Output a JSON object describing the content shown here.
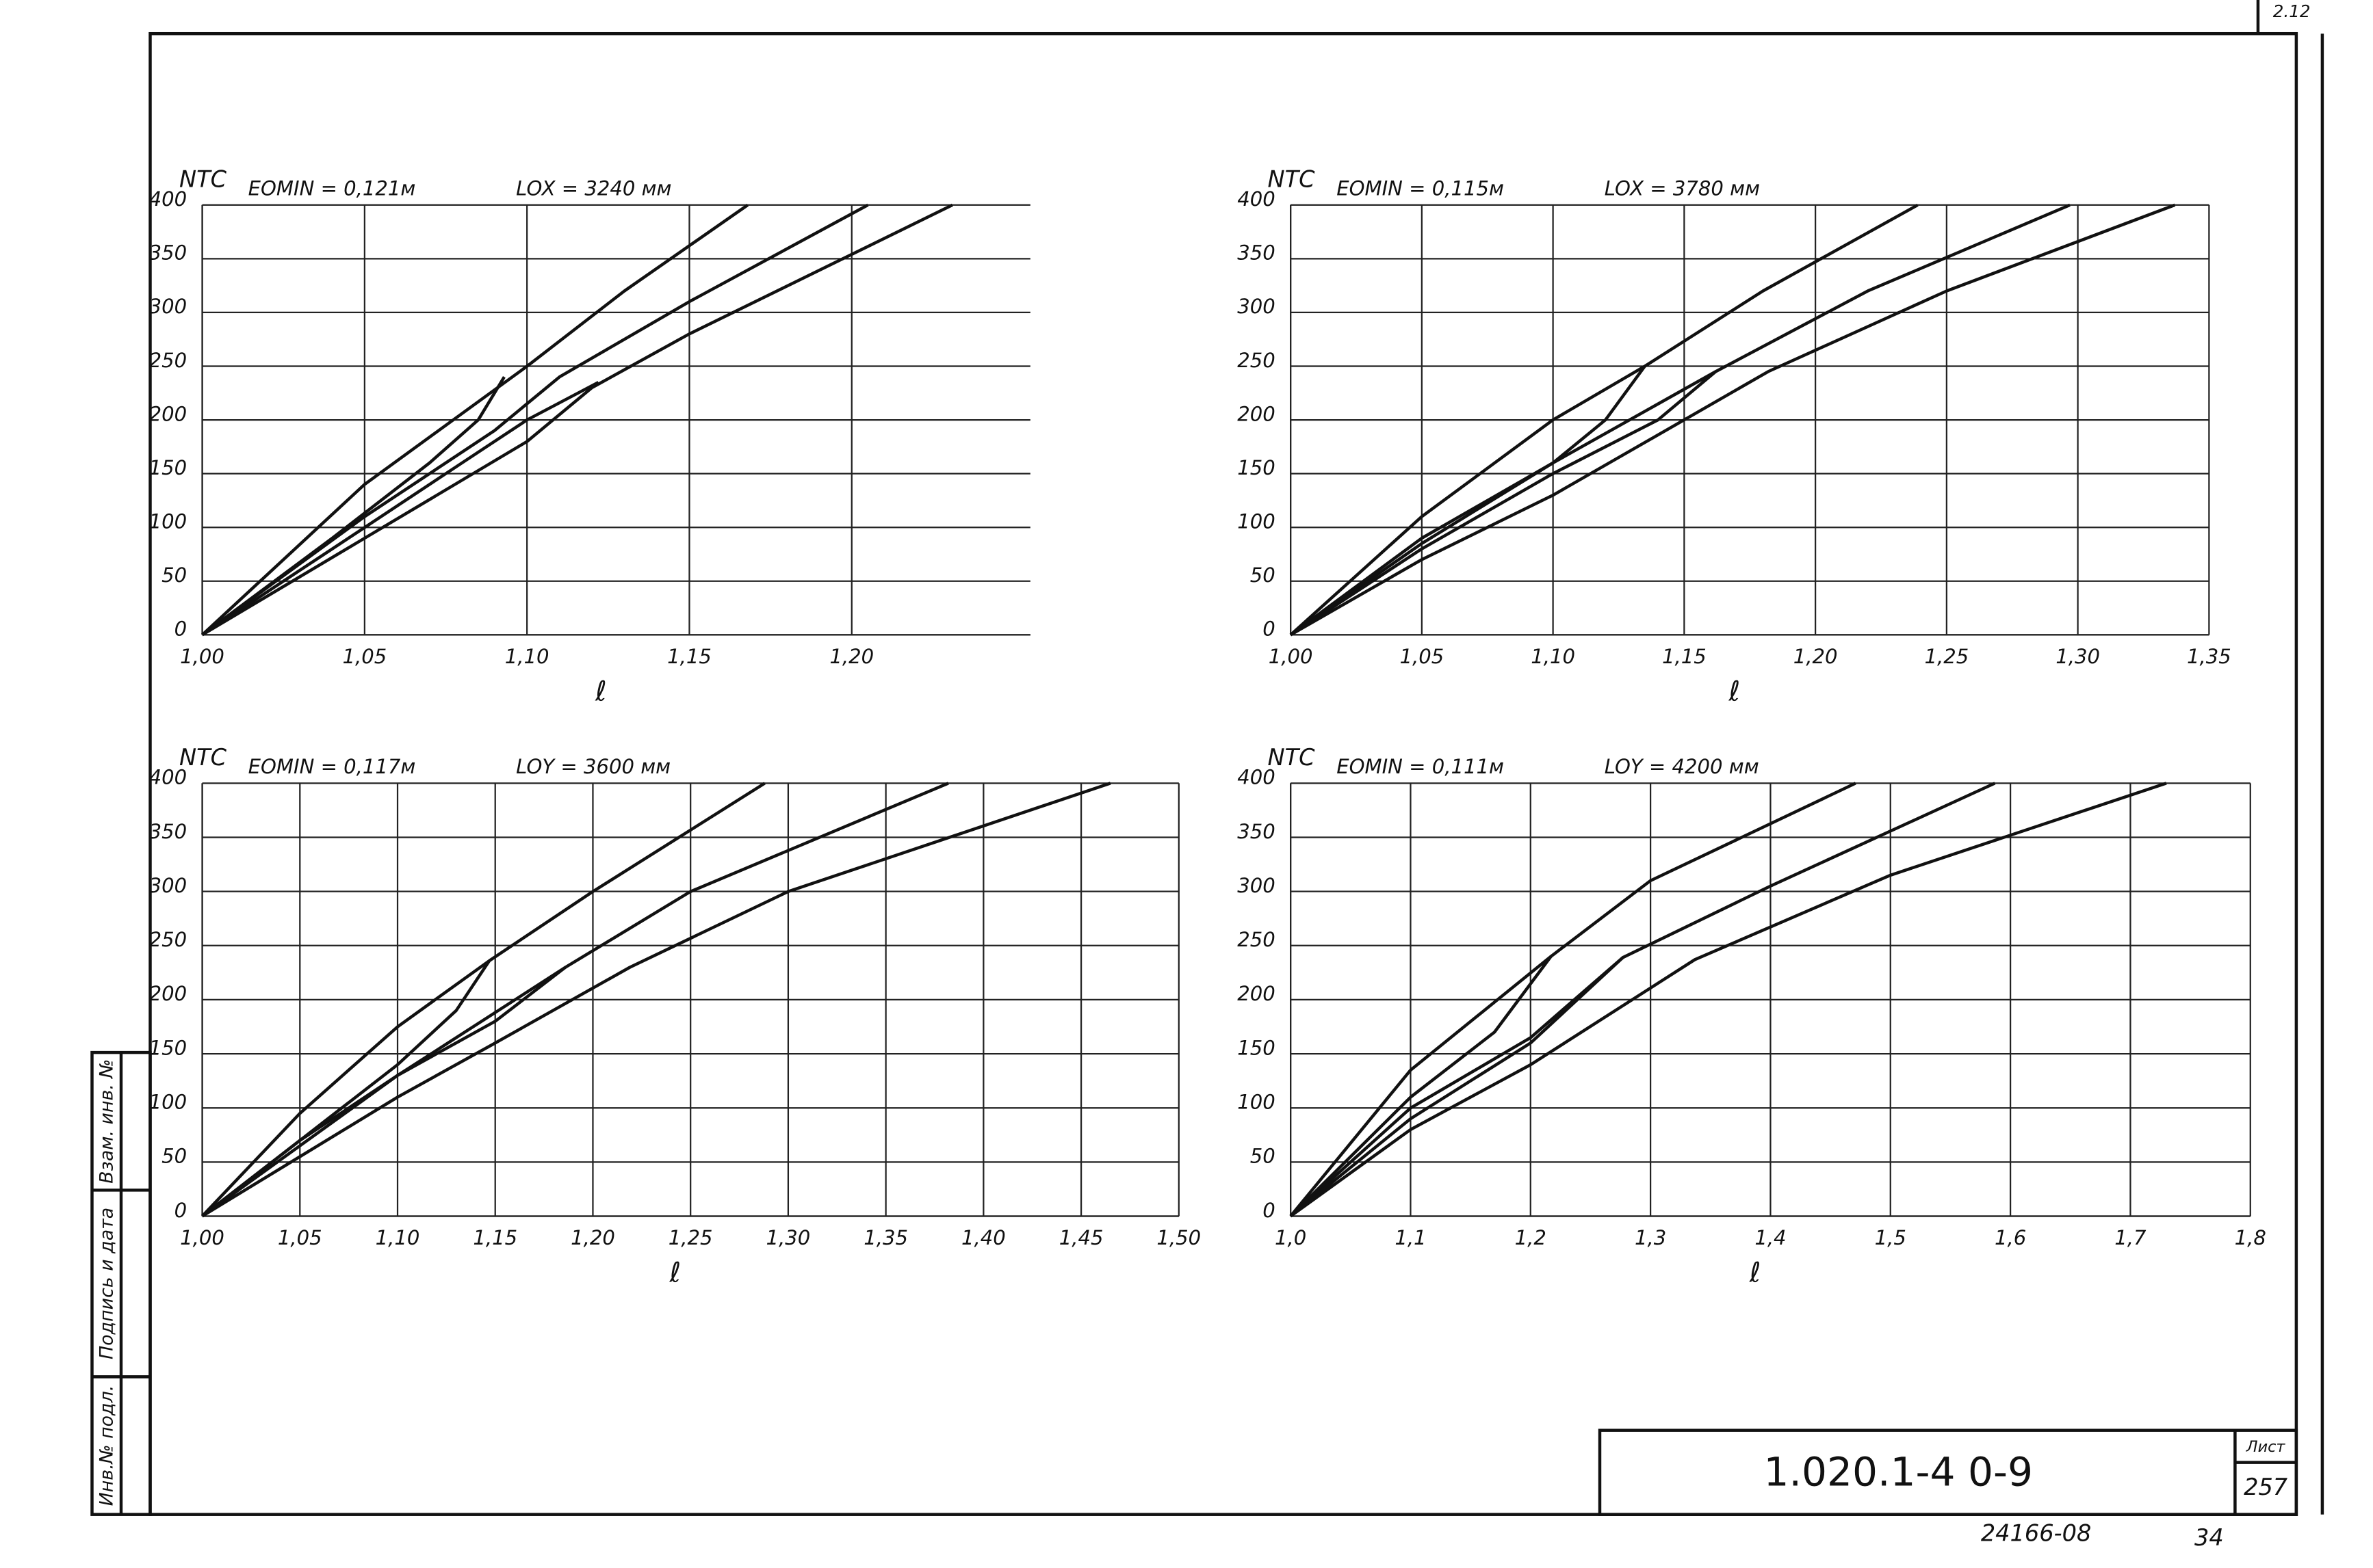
{
  "chart_data": [
    {
      "type": "line",
      "y_label": "NТС",
      "title": "EOMIN = 0,121м",
      "subtitle": "LOX = 3240 мм",
      "x_label": "ℓ",
      "xlim": [
        1.0,
        1.255
      ],
      "ylim": [
        0,
        400
      ],
      "grid": true,
      "color": "#111111",
      "xticks": [
        {
          "value": 1.0,
          "label": "1,00"
        },
        {
          "value": 1.05,
          "label": "1,05"
        },
        {
          "value": 1.1,
          "label": "1,10"
        },
        {
          "value": 1.15,
          "label": "1,15"
        },
        {
          "value": 1.2,
          "label": "1,20"
        }
      ],
      "yticks": [
        0,
        50,
        100,
        150,
        200,
        250,
        300,
        350,
        400
      ],
      "series": [
        {
          "x": [
            1.0,
            1.05,
            1.1,
            1.13,
            1.168
          ],
          "values": [
            0,
            140,
            250,
            320,
            400
          ]
        },
        {
          "x": [
            1.0,
            1.05,
            1.09,
            1.11,
            1.15,
            1.205
          ],
          "values": [
            0,
            110,
            190,
            240,
            310,
            400
          ]
        },
        {
          "x": [
            1.0,
            1.05,
            1.1,
            1.12,
            1.15,
            1.231
          ],
          "values": [
            0,
            90,
            180,
            230,
            280,
            400
          ]
        },
        {
          "x": [
            1.0,
            1.04,
            1.07,
            1.085,
            1.093
          ],
          "values": [
            0,
            90,
            160,
            200,
            240
          ]
        },
        {
          "x": [
            1.0,
            1.05,
            1.08,
            1.1,
            1.122
          ],
          "values": [
            0,
            100,
            160,
            200,
            235
          ]
        }
      ]
    },
    {
      "type": "line",
      "y_label": "NТС",
      "title": "EOMIN = 0,115м",
      "subtitle": "LOX = 3780 мм",
      "x_label": "ℓ",
      "xlim": [
        1.0,
        1.35
      ],
      "ylim": [
        0,
        400
      ],
      "grid": true,
      "color": "#111111",
      "xticks": [
        {
          "value": 1.0,
          "label": "1,00"
        },
        {
          "value": 1.05,
          "label": "1,05"
        },
        {
          "value": 1.1,
          "label": "1,10"
        },
        {
          "value": 1.15,
          "label": "1,15"
        },
        {
          "value": 1.2,
          "label": "1,20"
        },
        {
          "value": 1.25,
          "label": "1,25"
        },
        {
          "value": 1.3,
          "label": "1,30"
        },
        {
          "value": 1.35,
          "label": "1,35"
        }
      ],
      "yticks": [
        0,
        50,
        100,
        150,
        200,
        250,
        300,
        350,
        400
      ],
      "series": [
        {
          "x": [
            1.0,
            1.05,
            1.1,
            1.135,
            1.18,
            1.239
          ],
          "values": [
            0,
            110,
            200,
            250,
            320,
            400
          ]
        },
        {
          "x": [
            1.0,
            1.05,
            1.1,
            1.162,
            1.22,
            1.297
          ],
          "values": [
            0,
            85,
            160,
            245,
            320,
            400
          ]
        },
        {
          "x": [
            1.0,
            1.05,
            1.1,
            1.15,
            1.182,
            1.25,
            1.337
          ],
          "values": [
            0,
            70,
            130,
            200,
            245,
            320,
            400
          ]
        },
        {
          "x": [
            1.0,
            1.05,
            1.1,
            1.12,
            1.135
          ],
          "values": [
            0,
            90,
            160,
            200,
            250
          ]
        },
        {
          "x": [
            1.0,
            1.05,
            1.1,
            1.14,
            1.162
          ],
          "values": [
            0,
            80,
            150,
            200,
            245
          ]
        }
      ]
    },
    {
      "type": "line",
      "y_label": "NТС",
      "title": "EOMIN = 0,117м",
      "subtitle": "LOY = 3600 мм",
      "x_label": "ℓ",
      "xlim": [
        1.0,
        1.5
      ],
      "ylim": [
        0,
        400
      ],
      "grid": true,
      "color": "#111111",
      "xticks": [
        {
          "value": 1.0,
          "label": "1,00"
        },
        {
          "value": 1.05,
          "label": "1,05"
        },
        {
          "value": 1.1,
          "label": "1,10"
        },
        {
          "value": 1.15,
          "label": "1,15"
        },
        {
          "value": 1.2,
          "label": "1,20"
        },
        {
          "value": 1.25,
          "label": "1,25"
        },
        {
          "value": 1.3,
          "label": "1,30"
        },
        {
          "value": 1.35,
          "label": "1,35"
        },
        {
          "value": 1.4,
          "label": "1,40"
        },
        {
          "value": 1.45,
          "label": "1,45"
        },
        {
          "value": 1.5,
          "label": "1,50"
        }
      ],
      "yticks": [
        0,
        50,
        100,
        150,
        200,
        250,
        300,
        350,
        400
      ],
      "series": [
        {
          "x": [
            1.0,
            1.05,
            1.1,
            1.147,
            1.2,
            1.288
          ],
          "values": [
            0,
            95,
            175,
            236,
            300,
            400
          ]
        },
        {
          "x": [
            1.0,
            1.05,
            1.1,
            1.186,
            1.25,
            1.382
          ],
          "values": [
            0,
            70,
            130,
            230,
            300,
            400
          ]
        },
        {
          "x": [
            1.0,
            1.05,
            1.1,
            1.15,
            1.219,
            1.3,
            1.465
          ],
          "values": [
            0,
            55,
            110,
            160,
            230,
            300,
            400
          ]
        },
        {
          "x": [
            1.0,
            1.05,
            1.1,
            1.13,
            1.147
          ],
          "values": [
            0,
            70,
            140,
            190,
            236
          ]
        },
        {
          "x": [
            1.0,
            1.05,
            1.1,
            1.15,
            1.186
          ],
          "values": [
            0,
            65,
            130,
            180,
            230
          ]
        }
      ]
    },
    {
      "type": "line",
      "y_label": "NТС",
      "title": "EOMIN = 0,111м",
      "subtitle": "LOY = 4200 мм",
      "x_label": "ℓ",
      "xlim": [
        1.0,
        1.8
      ],
      "ylim": [
        0,
        400
      ],
      "grid": true,
      "color": "#111111",
      "xticks": [
        {
          "value": 1.0,
          "label": "1,0"
        },
        {
          "value": 1.1,
          "label": "1,1"
        },
        {
          "value": 1.2,
          "label": "1,2"
        },
        {
          "value": 1.3,
          "label": "1,3"
        },
        {
          "value": 1.4,
          "label": "1,4"
        },
        {
          "value": 1.5,
          "label": "1,5"
        },
        {
          "value": 1.6,
          "label": "1,6"
        },
        {
          "value": 1.7,
          "label": "1,7"
        },
        {
          "value": 1.8,
          "label": "1,8"
        }
      ],
      "yticks": [
        0,
        50,
        100,
        150,
        200,
        250,
        300,
        350,
        400
      ],
      "series": [
        {
          "x": [
            1.0,
            1.1,
            1.217,
            1.3,
            1.471
          ],
          "values": [
            0,
            135,
            240,
            310,
            400
          ]
        },
        {
          "x": [
            1.0,
            1.1,
            1.2,
            1.277,
            1.4,
            1.587
          ],
          "values": [
            0,
            100,
            165,
            239,
            305,
            400
          ]
        },
        {
          "x": [
            1.0,
            1.1,
            1.2,
            1.337,
            1.5,
            1.73
          ],
          "values": [
            0,
            80,
            140,
            237,
            315,
            400
          ]
        },
        {
          "x": [
            1.0,
            1.1,
            1.17,
            1.217
          ],
          "values": [
            0,
            110,
            170,
            240
          ]
        },
        {
          "x": [
            1.0,
            1.1,
            1.2,
            1.277
          ],
          "values": [
            0,
            90,
            160,
            239
          ]
        }
      ]
    }
  ],
  "frame": {
    "code": "1.020.1-4 0-9",
    "sheet_label": "Лист",
    "sheet": "257",
    "archive": "24166-08",
    "page": "34",
    "corner": "2.12",
    "stamp": [
      "Инв.№ подл.",
      "Подпись и дата",
      "Взам. инв. №"
    ]
  }
}
